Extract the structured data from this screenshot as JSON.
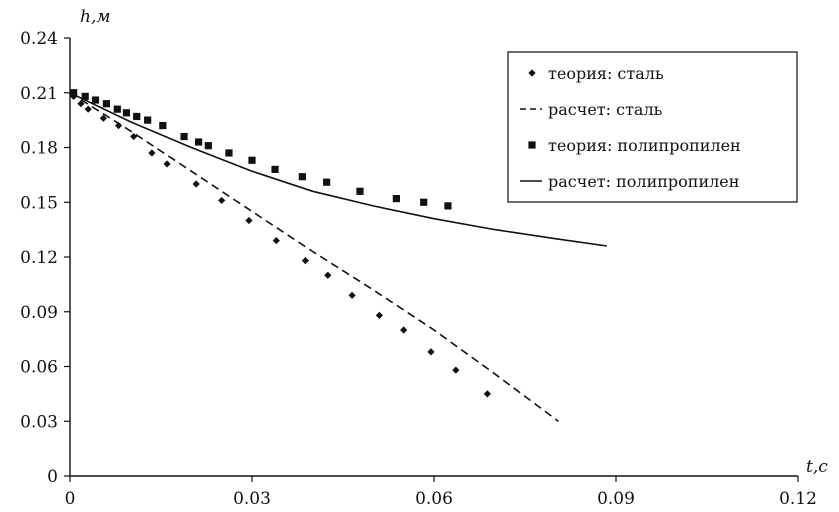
{
  "chart_data": {
    "type": "scatter",
    "title": "",
    "xlabel": "t,с",
    "ylabel": "h,м",
    "xlim": [
      0,
      0.12
    ],
    "ylim": [
      0,
      0.24
    ],
    "xticks": [
      0,
      0.03,
      0.06,
      0.09,
      0.12
    ],
    "xtick_labels": [
      "0",
      "0.03",
      "0.06",
      "0.09",
      "0.12"
    ],
    "yticks": [
      0,
      0.03,
      0.06,
      0.09,
      0.12,
      0.15,
      0.18,
      0.21,
      0.24
    ],
    "ytick_labels": [
      "0",
      "0.03",
      "0.06",
      "0.09",
      "0.12",
      "0.15",
      "0.18",
      "0.21",
      "0.24"
    ],
    "grid": false,
    "legend_position": "top-right",
    "series": [
      {
        "name": "теория: сталь",
        "type": "scatter",
        "marker": "diamond",
        "color": "#111111",
        "x": [
          0.0006,
          0.0018,
          0.003,
          0.0055,
          0.008,
          0.0105,
          0.0135,
          0.016,
          0.0208,
          0.025,
          0.0295,
          0.034,
          0.0388,
          0.0425,
          0.0465,
          0.051,
          0.055,
          0.0595,
          0.0636,
          0.0688
        ],
        "y": [
          0.208,
          0.204,
          0.201,
          0.196,
          0.192,
          0.186,
          0.177,
          0.171,
          0.16,
          0.151,
          0.14,
          0.129,
          0.118,
          0.11,
          0.099,
          0.088,
          0.08,
          0.068,
          0.058,
          0.045
        ]
      },
      {
        "name": "расчет: сталь",
        "type": "line",
        "dash": "dashed",
        "color": "#111111",
        "x": [
          0,
          0.01,
          0.02,
          0.03,
          0.04,
          0.05,
          0.06,
          0.07,
          0.0805
        ],
        "y": [
          0.21,
          0.189,
          0.167,
          0.145,
          0.123,
          0.102,
          0.08,
          0.056,
          0.03
        ]
      },
      {
        "name": "теория: полипропилен",
        "type": "scatter",
        "marker": "square",
        "color": "#111111",
        "x": [
          0.0006,
          0.0025,
          0.0042,
          0.006,
          0.0078,
          0.0093,
          0.011,
          0.0128,
          0.0153,
          0.0188,
          0.0212,
          0.0228,
          0.0262,
          0.03,
          0.0338,
          0.0383,
          0.0423,
          0.0478,
          0.0538,
          0.0583,
          0.0623
        ],
        "y": [
          0.21,
          0.208,
          0.206,
          0.204,
          0.201,
          0.199,
          0.197,
          0.195,
          0.192,
          0.186,
          0.183,
          0.181,
          0.177,
          0.173,
          0.168,
          0.164,
          0.161,
          0.156,
          0.152,
          0.15,
          0.148
        ]
      },
      {
        "name": "расчет: полипропилен",
        "type": "line",
        "dash": "solid",
        "color": "#111111",
        "x": [
          0,
          0.01,
          0.02,
          0.03,
          0.04,
          0.05,
          0.06,
          0.07,
          0.08,
          0.0885
        ],
        "y": [
          0.21,
          0.194,
          0.18,
          0.167,
          0.156,
          0.148,
          0.141,
          0.135,
          0.13,
          0.126
        ]
      }
    ]
  }
}
